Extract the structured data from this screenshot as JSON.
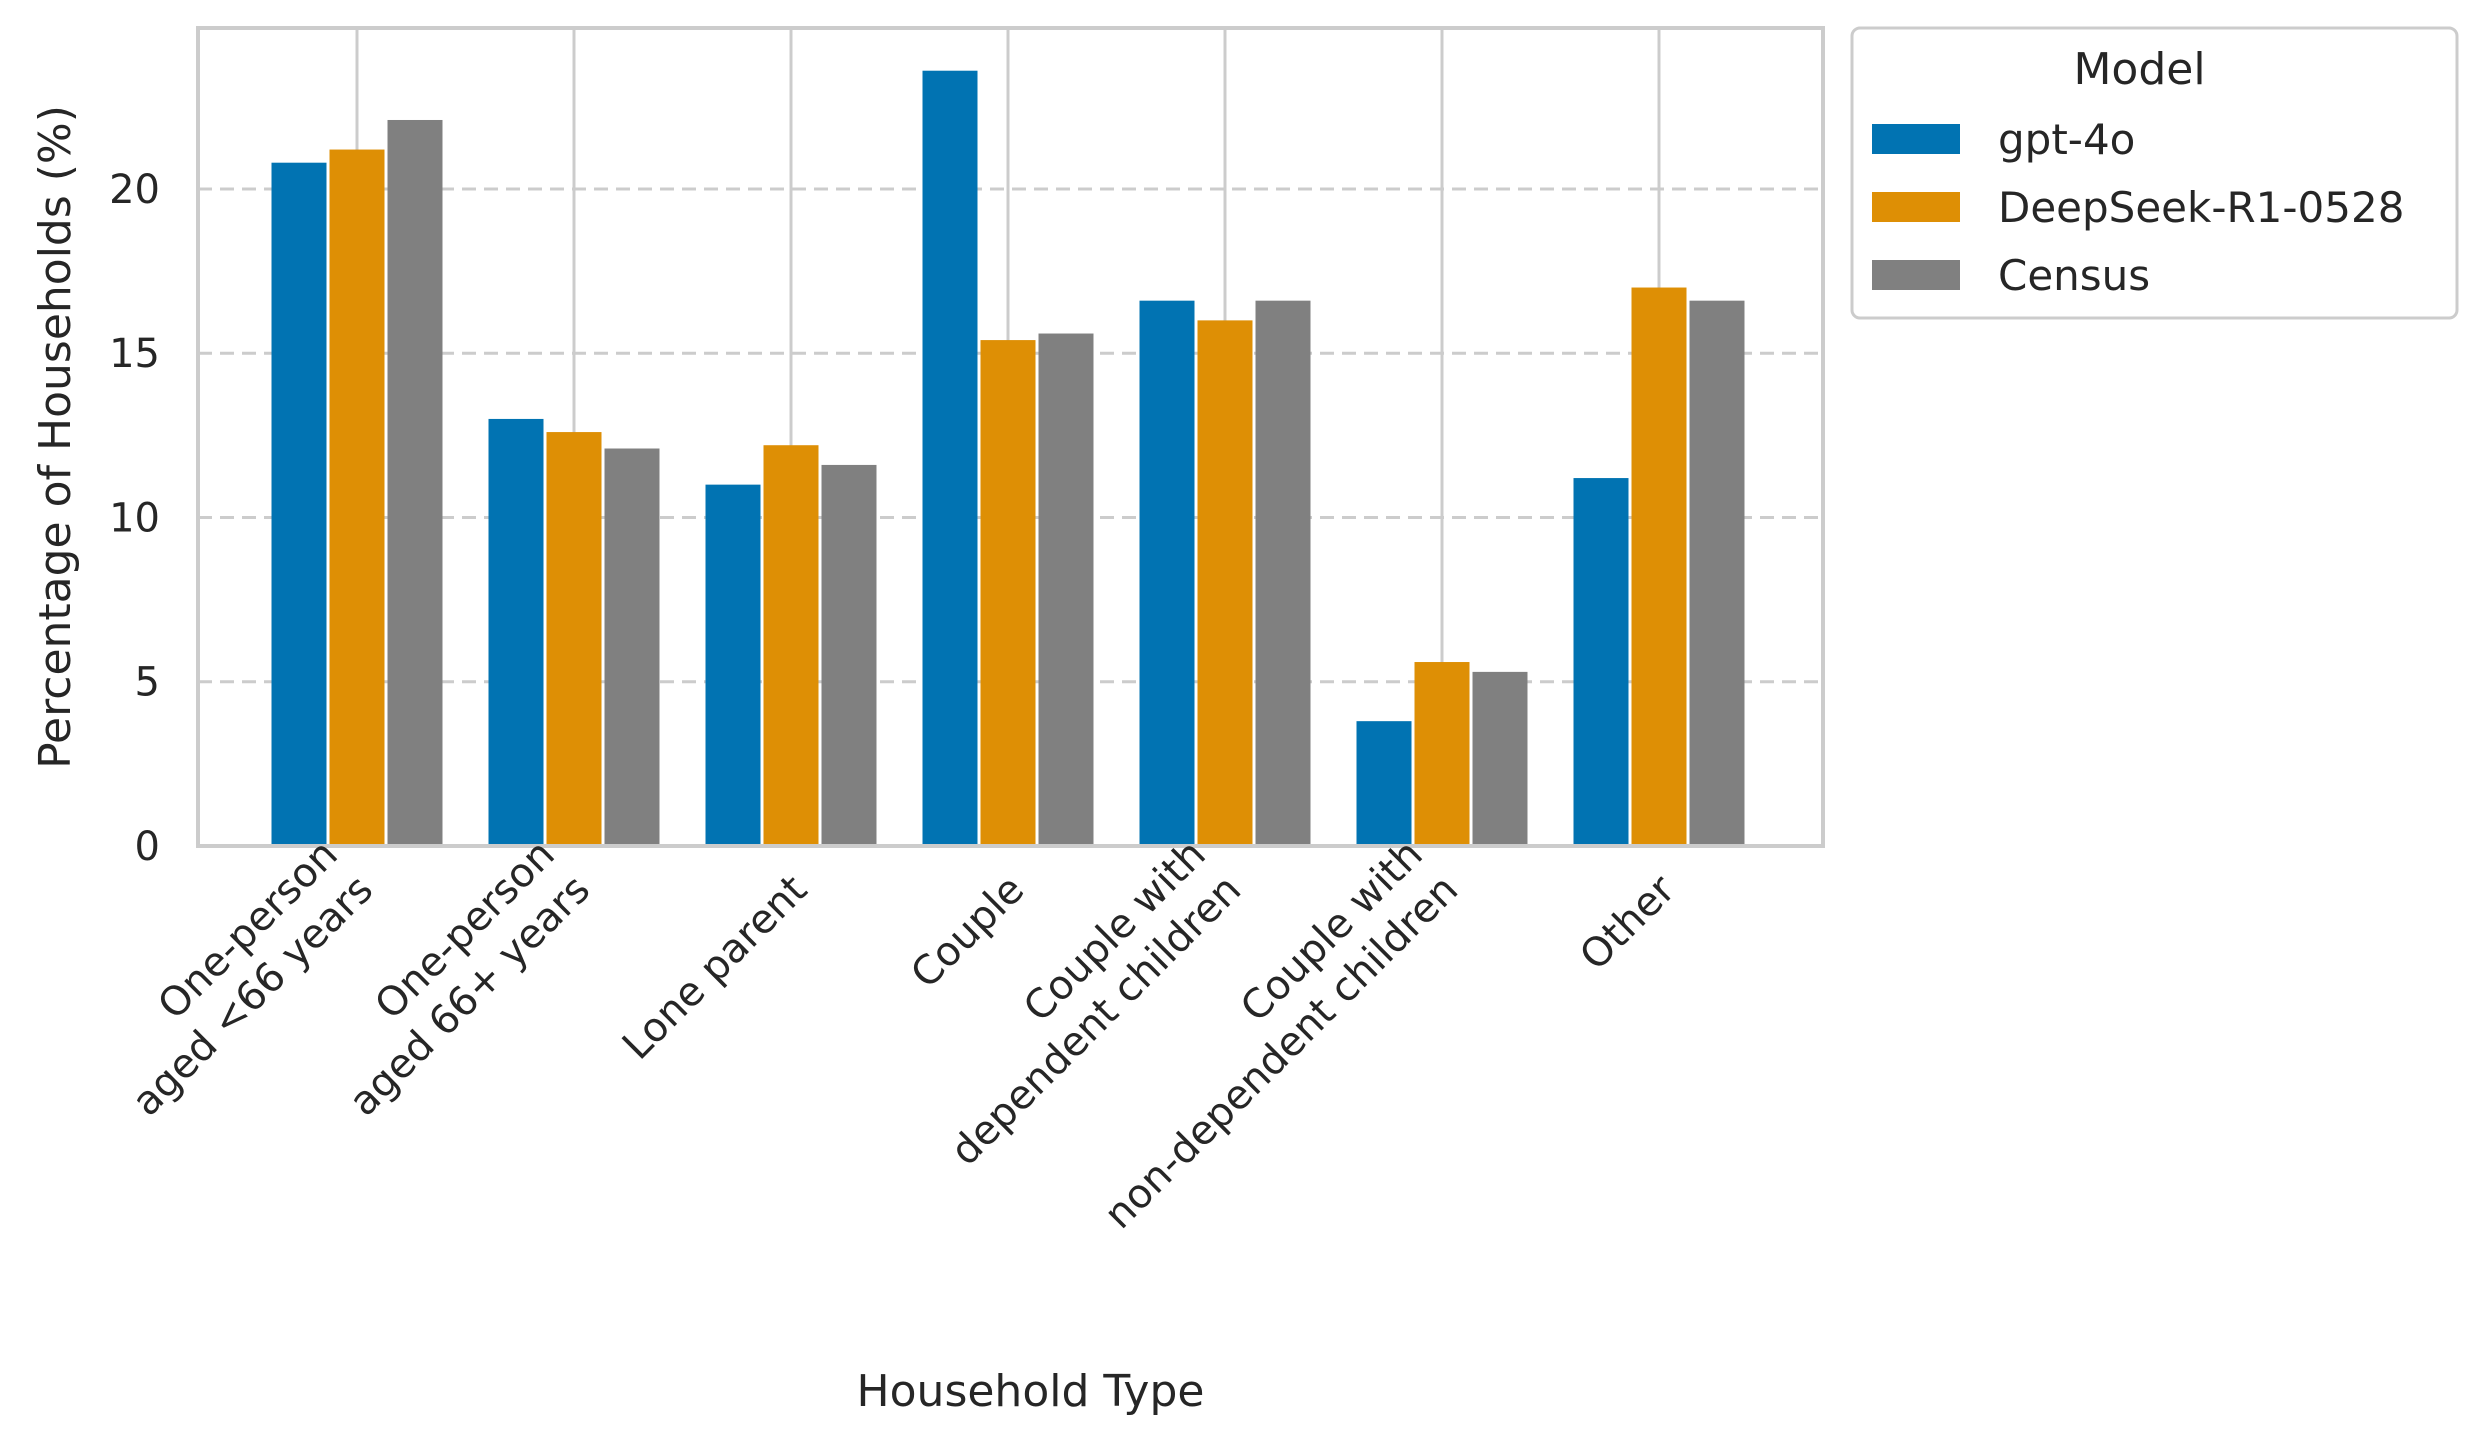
{
  "chart_data": {
    "type": "bar",
    "title": "",
    "xlabel": "Household Type",
    "ylabel": "Percentage of Households (%)",
    "ylim": [
      0,
      24.9
    ],
    "yticks": [
      0,
      5,
      10,
      15,
      20
    ],
    "grid": "y-dashed",
    "categories": [
      [
        "One-person",
        "aged <66 years"
      ],
      [
        "One-person",
        "aged 66+ years"
      ],
      [
        "Lone parent"
      ],
      [
        "Couple"
      ],
      [
        "Couple with",
        "dependent children"
      ],
      [
        "Couple with",
        "non-dependent children"
      ],
      [
        "Other"
      ]
    ],
    "series": [
      {
        "name": "gpt-4o",
        "color": "#0173b2",
        "values": [
          20.8,
          13.0,
          11.0,
          23.6,
          16.6,
          3.8,
          11.2
        ]
      },
      {
        "name": "DeepSeek-R1-0528",
        "color": "#de8f05",
        "values": [
          21.2,
          12.6,
          12.2,
          15.4,
          16.0,
          5.6,
          17.0
        ]
      },
      {
        "name": "Census",
        "color": "#808080",
        "values": [
          22.1,
          12.1,
          11.6,
          15.6,
          16.6,
          5.3,
          16.6
        ]
      }
    ],
    "legend": {
      "title": "Model",
      "placement": "outside-top-right"
    }
  }
}
